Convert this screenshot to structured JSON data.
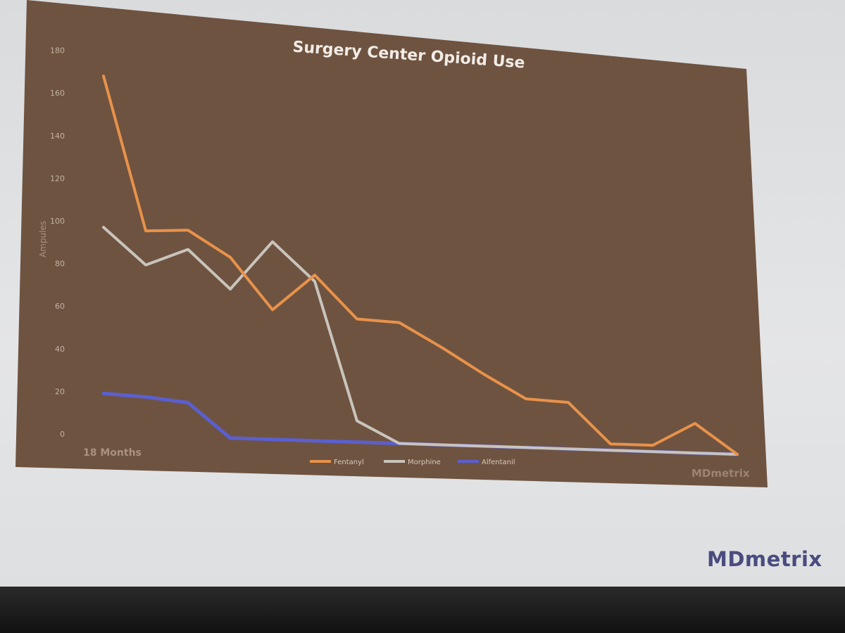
{
  "slide": {
    "logo_text": "MDmetrix",
    "panel_watermark": "MDmetrix",
    "time_caption": "18 Months"
  },
  "colors": {
    "panel": "#6e5340",
    "fentanyl": "#e8924a",
    "morphine": "#c9c4bc",
    "alfentanil": "#5b5fd0",
    "logo": "#4a4b7e"
  },
  "chart_data": {
    "type": "line",
    "title": "Surgery Center Opioid Use",
    "ylabel": "Ampules",
    "xlabel": "",
    "ylim": [
      0,
      180
    ],
    "yticks": [
      0,
      20,
      40,
      60,
      80,
      100,
      120,
      140,
      160,
      180
    ],
    "x": [
      1,
      2,
      3,
      4,
      5,
      6,
      7,
      8,
      9,
      10,
      11,
      12,
      13,
      14,
      15,
      16
    ],
    "legend_position": "bottom-center",
    "grid": false,
    "series": [
      {
        "name": "Fentanyl",
        "values": [
          168,
          96,
          97,
          85,
          61,
          78,
          58,
          57,
          46,
          34,
          23,
          22,
          3,
          3,
          14,
          0
        ]
      },
      {
        "name": "Morphine",
        "values": [
          97,
          80,
          88,
          70,
          93,
          75,
          10,
          0,
          0,
          0,
          0,
          0,
          0,
          0,
          0,
          0
        ]
      },
      {
        "name": "Alfentanil",
        "values": [
          19,
          18,
          16,
          0,
          0,
          0,
          0,
          0,
          0,
          0,
          0,
          0,
          0,
          0,
          0,
          0
        ]
      }
    ]
  }
}
